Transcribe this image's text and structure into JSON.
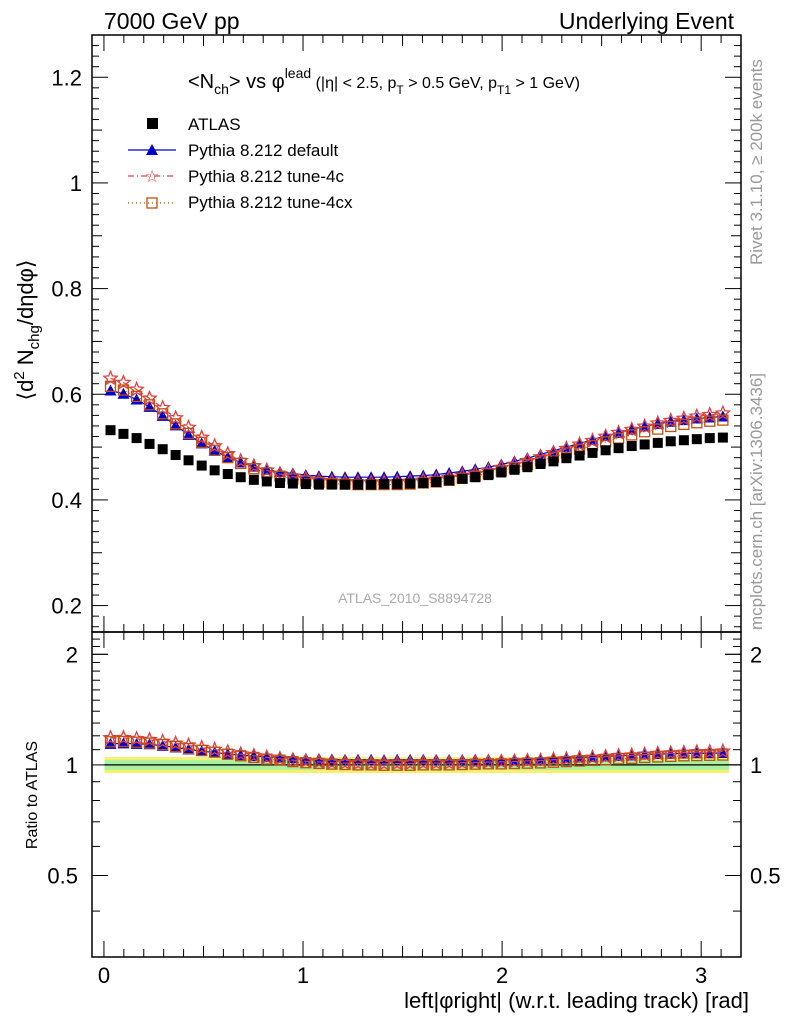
{
  "header": {
    "left": "7000 GeV pp",
    "right": "Underlying Event"
  },
  "side": {
    "rivet": "Rivet 3.1.10, ≥ 200k events",
    "mcplots": "mcplots.cern.ch [arXiv:1306.3436]"
  },
  "colors": {
    "atlas": "#000000",
    "default": "#0000cc",
    "tune4c": "#e04040",
    "tune4cx": "#c05010",
    "band_yellow": "#f5f06e",
    "band_green": "#a6f0a0"
  },
  "chart_data": [
    {
      "type": "scatter",
      "panel": "main",
      "title": "<N_ch> vs φ^lead (|η| < 2.5, p_T > 0.5 GeV, p_T1 > 1 GeV)",
      "ylabel": "⟨d² N_chg/dηdφ⟩",
      "xlim": [
        -0.06,
        3.2
      ],
      "ylim": [
        0.15,
        1.28
      ],
      "yticks": [
        0.2,
        0.4,
        0.6,
        0.8,
        1,
        1.2
      ],
      "ytick_labels": [
        "0.2",
        "0.4",
        "0.6",
        "0.8",
        "1",
        "1.2"
      ],
      "legend_position": "top-left",
      "watermark": "ATLAS_2010_S8894728",
      "legend": [
        "ATLAS",
        "Pythia 8.212 default",
        "Pythia 8.212 tune-4c",
        "Pythia 8.212 tune-4cx"
      ],
      "x": [
        0.033,
        0.098,
        0.164,
        0.229,
        0.295,
        0.36,
        0.425,
        0.491,
        0.556,
        0.622,
        0.687,
        0.753,
        0.818,
        0.884,
        0.949,
        1.014,
        1.08,
        1.145,
        1.211,
        1.276,
        1.342,
        1.407,
        1.473,
        1.538,
        1.604,
        1.669,
        1.734,
        1.8,
        1.865,
        1.931,
        1.996,
        2.062,
        2.127,
        2.193,
        2.258,
        2.323,
        2.389,
        2.454,
        2.52,
        2.585,
        2.651,
        2.716,
        2.782,
        2.847,
        2.913,
        2.978,
        3.043,
        3.109
      ],
      "series": [
        {
          "name": "ATLAS",
          "values": [
            0.532,
            0.525,
            0.517,
            0.506,
            0.496,
            0.485,
            0.475,
            0.465,
            0.456,
            0.449,
            0.443,
            0.438,
            0.435,
            0.432,
            0.431,
            0.43,
            0.429,
            0.429,
            0.429,
            0.429,
            0.429,
            0.43,
            0.43,
            0.431,
            0.432,
            0.434,
            0.437,
            0.44,
            0.443,
            0.447,
            0.452,
            0.457,
            0.462,
            0.468,
            0.473,
            0.479,
            0.484,
            0.489,
            0.494,
            0.498,
            0.502,
            0.505,
            0.508,
            0.511,
            0.513,
            0.515,
            0.517,
            0.518
          ]
        },
        {
          "name": "Pythia 8.212 default",
          "values": [
            0.607,
            0.601,
            0.59,
            0.576,
            0.559,
            0.541,
            0.523,
            0.507,
            0.493,
            0.481,
            0.471,
            0.463,
            0.457,
            0.453,
            0.45,
            0.447,
            0.445,
            0.444,
            0.443,
            0.443,
            0.443,
            0.443,
            0.444,
            0.445,
            0.446,
            0.448,
            0.451,
            0.454,
            0.458,
            0.462,
            0.467,
            0.473,
            0.479,
            0.486,
            0.493,
            0.5,
            0.507,
            0.514,
            0.521,
            0.527,
            0.533,
            0.539,
            0.544,
            0.548,
            0.551,
            0.554,
            0.556,
            0.558
          ]
        },
        {
          "name": "Pythia 8.212 tune-4c",
          "values": [
            0.63,
            0.622,
            0.609,
            0.592,
            0.574,
            0.555,
            0.537,
            0.518,
            0.502,
            0.487,
            0.474,
            0.464,
            0.456,
            0.449,
            0.444,
            0.44,
            0.437,
            0.435,
            0.434,
            0.433,
            0.433,
            0.433,
            0.434,
            0.435,
            0.437,
            0.439,
            0.442,
            0.446,
            0.45,
            0.455,
            0.461,
            0.467,
            0.474,
            0.481,
            0.489,
            0.497,
            0.505,
            0.512,
            0.52,
            0.527,
            0.533,
            0.539,
            0.545,
            0.55,
            0.554,
            0.558,
            0.561,
            0.564
          ]
        },
        {
          "name": "Pythia 8.212 tune-4cx",
          "values": [
            0.615,
            0.608,
            0.596,
            0.58,
            0.563,
            0.544,
            0.526,
            0.509,
            0.494,
            0.48,
            0.469,
            0.459,
            0.451,
            0.445,
            0.44,
            0.436,
            0.433,
            0.431,
            0.43,
            0.429,
            0.429,
            0.429,
            0.429,
            0.43,
            0.432,
            0.434,
            0.437,
            0.441,
            0.445,
            0.45,
            0.455,
            0.461,
            0.467,
            0.474,
            0.481,
            0.489,
            0.496,
            0.503,
            0.51,
            0.517,
            0.523,
            0.529,
            0.534,
            0.539,
            0.543,
            0.546,
            0.549,
            0.551
          ]
        }
      ]
    },
    {
      "type": "scatter",
      "panel": "ratio",
      "ylabel": "Ratio to ATLAS",
      "xlabel": "left|φright| (w.r.t. leading track) [rad]",
      "xlim": [
        -0.06,
        3.2
      ],
      "ylim": [
        0.3,
        2.3
      ],
      "xticks": [
        0,
        1,
        2,
        3
      ],
      "xtick_labels": [
        "0",
        "1",
        "2",
        "3"
      ],
      "yticks": [
        0.5,
        1,
        2
      ],
      "ytick_labels": [
        "0.5",
        "1",
        "2"
      ],
      "band": {
        "yellow": [
          0.95,
          1.05
        ],
        "green": [
          0.97,
          1.03
        ]
      }
    }
  ]
}
